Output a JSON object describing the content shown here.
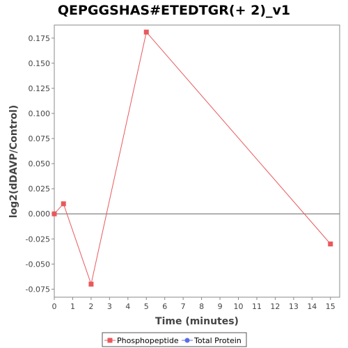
{
  "chart_data": {
    "type": "line",
    "title": "QEPGGSHAS#ETEDTGR(+ 2)_v1",
    "xlabel": "Time (minutes)",
    "ylabel": "log2(dDAVP/Control)",
    "xlim": [
      0,
      15.5
    ],
    "ylim": [
      -0.083,
      0.188
    ],
    "x_ticks": [
      0,
      1,
      2,
      3,
      4,
      5,
      6,
      7,
      8,
      9,
      10,
      11,
      12,
      13,
      14,
      15
    ],
    "y_ticks": [
      -0.075,
      -0.05,
      -0.025,
      0,
      0.025,
      0.05,
      0.075,
      0.1,
      0.125,
      0.15,
      0.175
    ],
    "y_tick_labels": [
      "-0.075",
      "-0.050",
      "-0.025",
      "0.000",
      "0.025",
      "0.050",
      "0.075",
      "0.100",
      "0.125",
      "0.150",
      "0.175"
    ],
    "series": [
      {
        "name": "Phosphopeptide",
        "color": "#e8595c",
        "marker": "square",
        "points": [
          {
            "x": 0,
            "y": 0.0
          },
          {
            "x": 0.5,
            "y": 0.01
          },
          {
            "x": 2,
            "y": -0.07
          },
          {
            "x": 5,
            "y": 0.181
          },
          {
            "x": 15,
            "y": -0.03
          }
        ]
      },
      {
        "name": "Total Protein",
        "color": "#5a6bea",
        "marker": "circle",
        "points": []
      }
    ],
    "zero_line": true,
    "grid": false,
    "legend_position": "bottom-center"
  }
}
